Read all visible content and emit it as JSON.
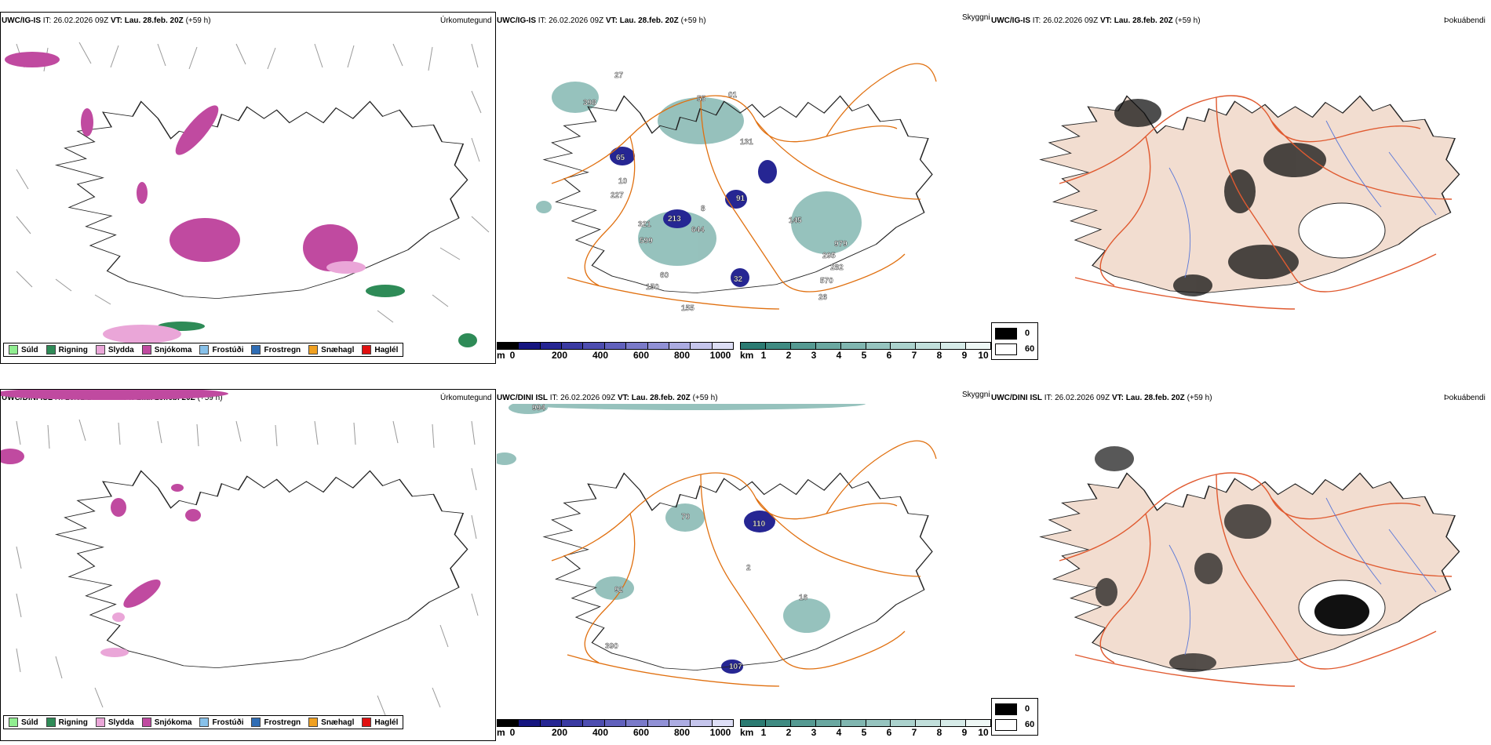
{
  "rows": [
    {
      "model": "UWC/IG-IS",
      "it": "IT: 26.02.2026 09Z",
      "vt_label": "VT:",
      "vt": "Lau. 28.feb. 20Z",
      "lead": "(+59 h)"
    },
    {
      "model": "UWC/DINI ISL",
      "it": "IT: 26.02.2026 09Z",
      "vt_label": "VT:",
      "vt": "Lau. 28.feb. 20Z",
      "lead": "(+59 h)"
    }
  ],
  "panel_titles": {
    "precip": "Úrkomutegund",
    "visibility": "Skyggni",
    "fog": "Þokuábendi"
  },
  "precip_legend": [
    {
      "label": "Súld",
      "color": "#90ee90"
    },
    {
      "label": "Rigning",
      "color": "#2e8b57"
    },
    {
      "label": "Slydda",
      "color": "#eaa6d8"
    },
    {
      "label": "Snjókoma",
      "color": "#c04aa0"
    },
    {
      "label": "Frostúði",
      "color": "#87c1ea"
    },
    {
      "label": "Frostregn",
      "color": "#2f6db5"
    },
    {
      "label": "Snæhagl",
      "color": "#f0a020"
    },
    {
      "label": "Haglél",
      "color": "#e01010"
    }
  ],
  "ceiling_colorbar": {
    "unit": "m",
    "ticks": [
      "0",
      "200",
      "400",
      "600",
      "800",
      "1000"
    ],
    "colors": [
      "#000000",
      "#151580",
      "#262693",
      "#3a3aa2",
      "#4d4db0",
      "#6161bd",
      "#7a7ac9",
      "#9191d6",
      "#acace2",
      "#c5c5ec",
      "#dddef5"
    ]
  },
  "visibility_colorbar": {
    "unit": "km",
    "ticks": [
      "1",
      "2",
      "3",
      "4",
      "5",
      "6",
      "7",
      "8",
      "9",
      "10"
    ],
    "colors": [
      "#2b7b72",
      "#3f8b82",
      "#559a92",
      "#6aa8a1",
      "#80b6b0",
      "#96c4bf",
      "#abd2cd",
      "#c1dfdb",
      "#d6ebe8",
      "#eef7f5"
    ]
  },
  "fog_legend": [
    {
      "label": "0",
      "color": "#000000"
    },
    {
      "label": "60",
      "color": "#ffffff"
    }
  ],
  "ceiling_labels": [
    [
      "27",
      "398",
      "01",
      "131",
      "55",
      "65",
      "10",
      "227",
      "8",
      "213",
      "321",
      "91",
      "644",
      "599",
      "145",
      "979",
      "295",
      "282",
      "570",
      "26",
      "32",
      "150",
      "60",
      "155"
    ],
    [
      "994",
      "70",
      "110",
      "92",
      "2",
      "16",
      "390",
      "107"
    ]
  ],
  "colors": {
    "coast": "#222222",
    "roads": "#e07010",
    "fog_land": "#f2ddd0",
    "fog_roads": "#e05a30",
    "rivers": "#5b78d8"
  }
}
